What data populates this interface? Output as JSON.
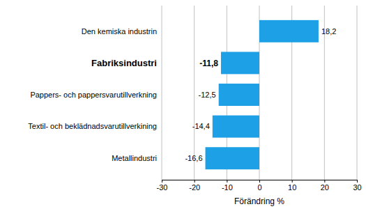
{
  "chart_data": {
    "type": "bar",
    "orientation": "horizontal",
    "x_label": "Förändring %",
    "categories": [
      "Den kemiska industrin",
      "Fabriksindustri",
      "Pappers- och pappersvarutillverkning",
      "Textil- och beklädnadsvarutillverkining",
      "Metallindustri"
    ],
    "values": [
      18.2,
      -11.8,
      -12.5,
      -14.4,
      -16.6
    ],
    "value_labels": [
      "18,2",
      "-11,8",
      "-12,5",
      "-14,4",
      "-16,6"
    ],
    "data_labels": true,
    "color": "#1ea0e6",
    "xlim": [
      -30,
      30
    ],
    "xticks": [
      -30,
      -20,
      -10,
      0,
      10,
      20,
      30
    ],
    "grid": true
  }
}
